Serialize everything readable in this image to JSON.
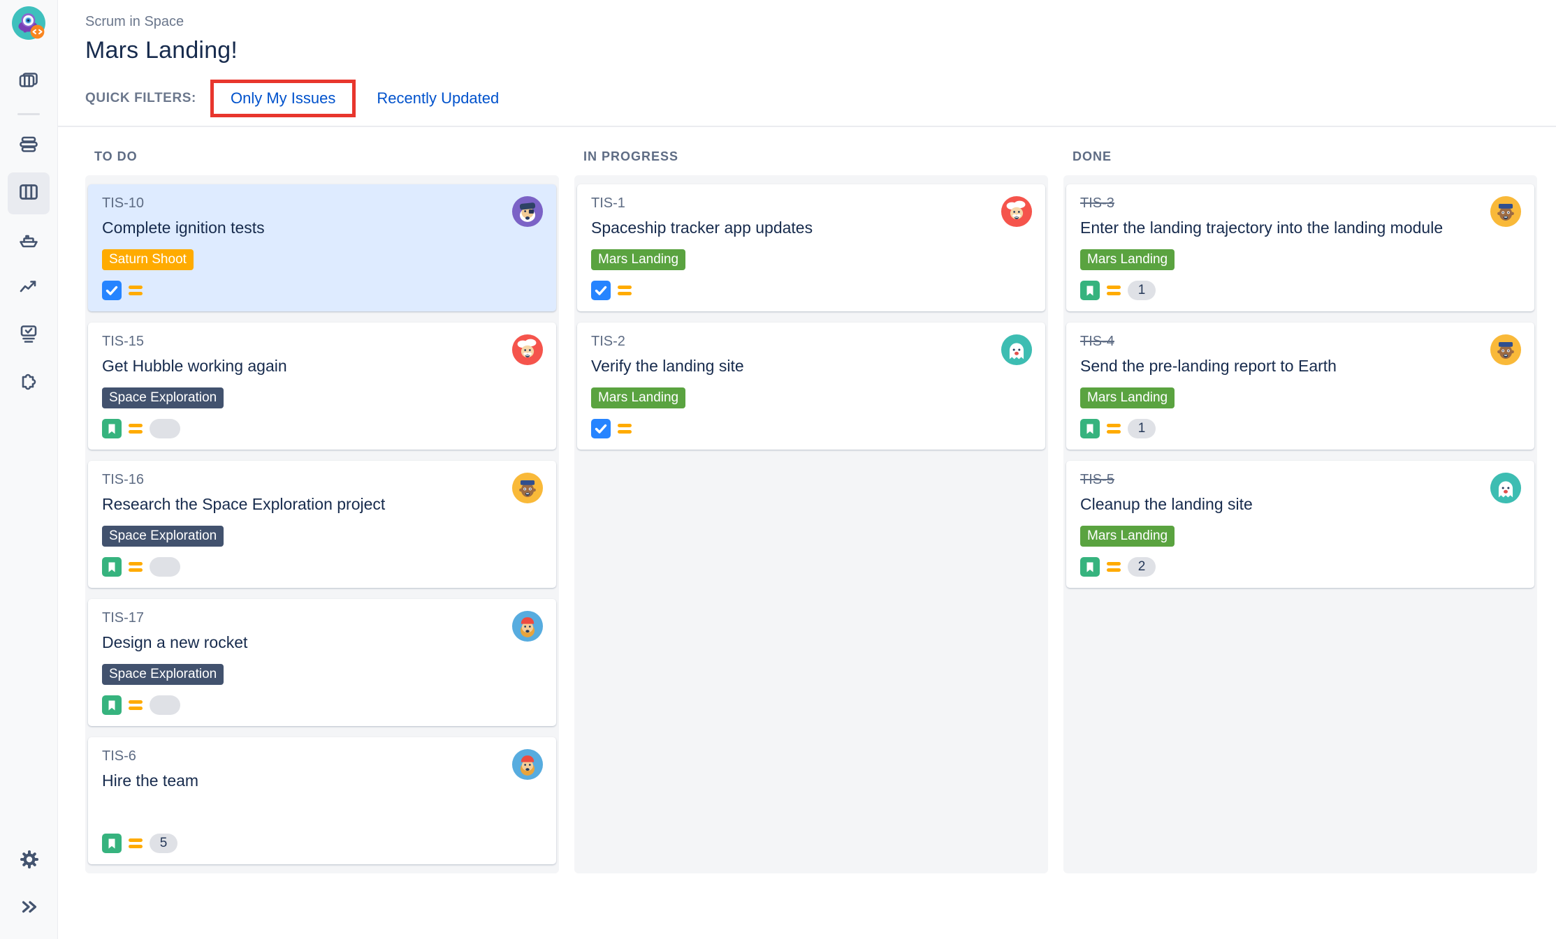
{
  "sidebar": {
    "logo": "scrum-in-space-project-avatar",
    "items": [
      {
        "icon": "boards-icon",
        "name": "boards",
        "selected": false
      },
      {
        "icon": "backlog-icon",
        "name": "backlog",
        "selected": false
      },
      {
        "icon": "active-sprints-icon",
        "name": "active-sprints",
        "selected": true
      },
      {
        "icon": "releases-ship-icon",
        "name": "releases",
        "selected": false
      },
      {
        "icon": "reports-chart-icon",
        "name": "reports",
        "selected": false
      },
      {
        "icon": "issues-icon",
        "name": "issues",
        "selected": false
      },
      {
        "icon": "add-ons-puzzle-icon",
        "name": "add-ons",
        "selected": false
      }
    ],
    "bottom": [
      {
        "icon": "settings-gear-icon",
        "name": "settings"
      },
      {
        "icon": "expand-chevrons-icon",
        "name": "expand-sidebar"
      }
    ]
  },
  "header": {
    "breadcrumb": "Scrum in Space",
    "title": "Mars Landing!",
    "quick_filters_label": "QUICK FILTERS:",
    "filters": [
      {
        "label": "Only My Issues",
        "highlighted": true
      },
      {
        "label": "Recently Updated",
        "highlighted": false
      }
    ],
    "highlight_color": "#E8362D",
    "link_color": "#0052CC"
  },
  "board": {
    "columns": [
      {
        "title": "TO DO",
        "cards": [
          {
            "key": "TIS-10",
            "title": "Complete ignition tests",
            "epic": "Saturn Shoot",
            "epic_color": "#FFAB00",
            "type": "task",
            "priority": "medium",
            "estimate": null,
            "avatar": "captain-purple",
            "selected": true,
            "done": false
          },
          {
            "key": "TIS-15",
            "title": "Get Hubble working again",
            "epic": "Space Exploration",
            "epic_color": "#42526E",
            "type": "story",
            "priority": "medium",
            "estimate": "",
            "avatar": "einstein-red",
            "selected": false,
            "done": false
          },
          {
            "key": "TIS-16",
            "title": "Research the Space Exploration project",
            "epic": "Space Exploration",
            "epic_color": "#42526E",
            "type": "story",
            "priority": "medium",
            "estimate": "",
            "avatar": "man-yellow",
            "selected": false,
            "done": false
          },
          {
            "key": "TIS-17",
            "title": "Design a new rocket",
            "epic": "Space Exploration",
            "epic_color": "#42526E",
            "type": "story",
            "priority": "medium",
            "estimate": "",
            "avatar": "beard-blue",
            "selected": false,
            "done": false
          },
          {
            "key": "TIS-6",
            "title": "Hire the team",
            "epic": null,
            "epic_color": null,
            "type": "story",
            "priority": "medium",
            "estimate": "5",
            "avatar": "beard-blue",
            "selected": false,
            "done": false
          }
        ]
      },
      {
        "title": "IN PROGRESS",
        "cards": [
          {
            "key": "TIS-1",
            "title": "Spaceship tracker app updates",
            "epic": "Mars Landing",
            "epic_color": "#5AA340",
            "type": "task",
            "priority": "medium",
            "estimate": null,
            "avatar": "einstein-red",
            "selected": false,
            "done": false
          },
          {
            "key": "TIS-2",
            "title": "Verify the landing site",
            "epic": "Mars Landing",
            "epic_color": "#5AA340",
            "type": "task",
            "priority": "medium",
            "estimate": null,
            "avatar": "ghost-teal",
            "selected": false,
            "done": false
          }
        ]
      },
      {
        "title": "DONE",
        "cards": [
          {
            "key": "TIS-3",
            "title": "Enter the landing trajectory into the landing module",
            "epic": "Mars Landing",
            "epic_color": "#5AA340",
            "type": "story",
            "priority": "medium",
            "estimate": "1",
            "avatar": "man-yellow",
            "selected": false,
            "done": true
          },
          {
            "key": "TIS-4",
            "title": "Send the pre-landing report to Earth",
            "epic": "Mars Landing",
            "epic_color": "#5AA340",
            "type": "story",
            "priority": "medium",
            "estimate": "1",
            "avatar": "man-yellow",
            "selected": false,
            "done": true
          },
          {
            "key": "TIS-5",
            "title": "Cleanup the landing site",
            "epic": "Mars Landing",
            "epic_color": "#5AA340",
            "type": "story",
            "priority": "medium",
            "estimate": "2",
            "avatar": "ghost-teal",
            "selected": false,
            "done": true
          }
        ]
      }
    ]
  },
  "colors": {
    "task_icon": "#2684FF",
    "story_icon": "#36B37E",
    "priority_medium": "#FFAB00",
    "selected_card_bg": "#DEEBFF",
    "column_bg": "#F4F5F7",
    "card_key": "#5E6C84",
    "card_title": "#172B4D",
    "estimate_badge_bg": "#DFE1E6"
  },
  "avatars": {
    "captain-purple": {
      "bg": "#7B62C6"
    },
    "einstein-red": {
      "bg": "#F5544C"
    },
    "man-yellow": {
      "bg": "#F9B939"
    },
    "beard-blue": {
      "bg": "#57ACDF"
    },
    "ghost-teal": {
      "bg": "#3DBDB2"
    }
  }
}
